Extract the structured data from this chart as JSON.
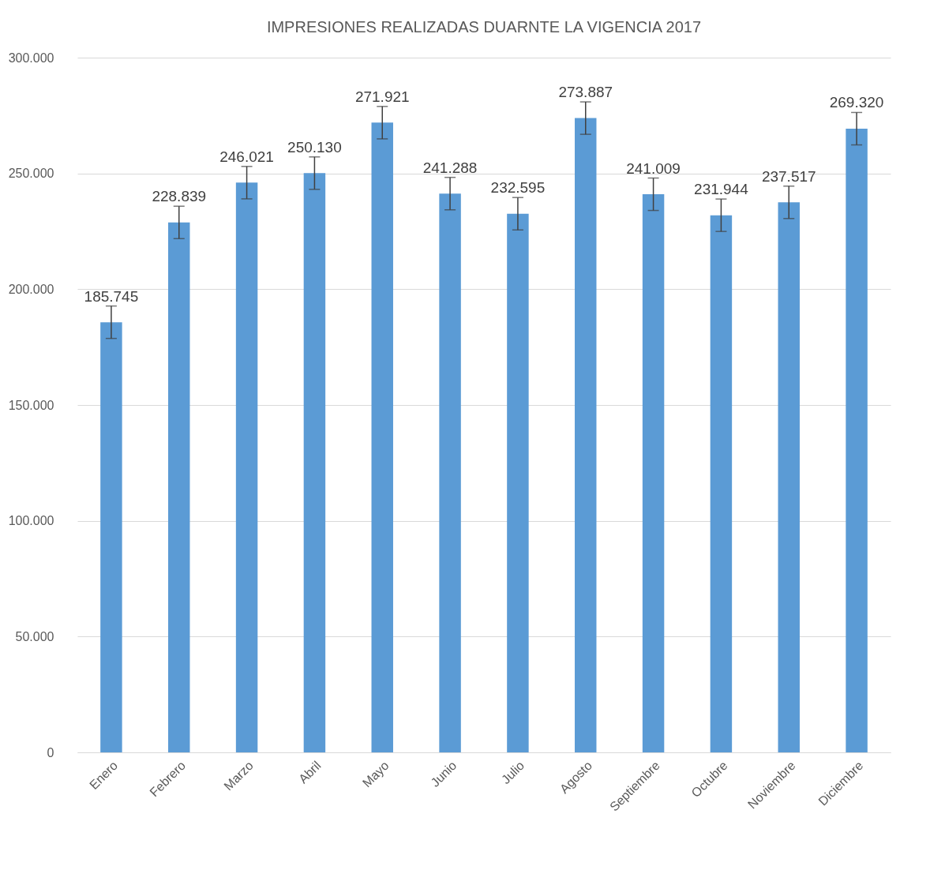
{
  "chart_data": {
    "type": "bar",
    "title": "IMPRESIONES REALIZADAS DUARNTE LA VIGENCIA 2017",
    "categories": [
      "Enero",
      "Febrero",
      "Marzo",
      "Abril",
      "Mayo",
      "Junio",
      "Julio",
      "Agosto",
      "Septiembre",
      "Octubre",
      "Noviembre",
      "Diciembre"
    ],
    "values": [
      185745,
      228839,
      246021,
      250130,
      271921,
      241288,
      232595,
      273887,
      241009,
      231944,
      237517,
      269320
    ],
    "value_labels": [
      "185.745",
      "228.839",
      "246.021",
      "250.130",
      "271.921",
      "241.288",
      "232.595",
      "273.887",
      "241.009",
      "231.944",
      "237.517",
      "269.320"
    ],
    "errors": [
      7000,
      7000,
      7000,
      7000,
      7000,
      7000,
      7000,
      7000,
      7000,
      7000,
      7000,
      7000
    ],
    "color": "#5b9bd5",
    "ylim": [
      0,
      300000
    ],
    "yticks": [
      {
        "value": 0,
        "label": "0"
      },
      {
        "value": 50000,
        "label": "50.000"
      },
      {
        "value": 100000,
        "label": "100.000"
      },
      {
        "value": 150000,
        "label": "150.000"
      },
      {
        "value": 200000,
        "label": "200.000"
      },
      {
        "value": 250000,
        "label": "250.000"
      },
      {
        "value": 300000,
        "label": "300.000"
      }
    ],
    "grid": "y"
  }
}
